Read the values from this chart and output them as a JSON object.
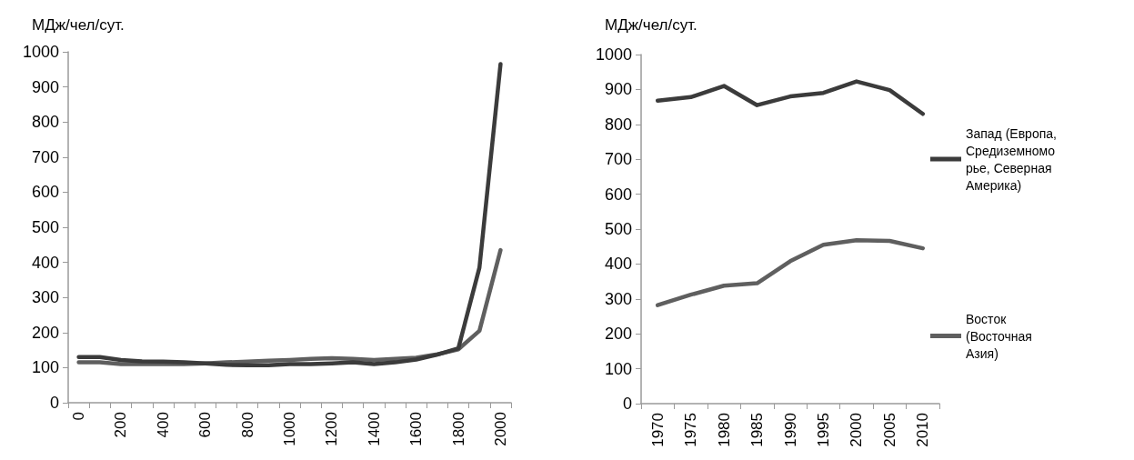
{
  "chart_data": [
    {
      "type": "line",
      "ylabel": "МДж/чел/сут.",
      "categories": [
        "0",
        null,
        "200",
        null,
        "400",
        null,
        "600",
        null,
        "800",
        null,
        "1000",
        null,
        "1200",
        null,
        "1400",
        null,
        "1600",
        null,
        "1800",
        null,
        "2000"
      ],
      "series": [
        {
          "color": "#3b3b3b",
          "values": [
            130,
            130,
            122,
            118,
            117,
            115,
            112,
            108,
            107,
            107,
            110,
            110,
            112,
            115,
            110,
            115,
            123,
            137,
            155,
            385,
            965
          ]
        },
        {
          "color": "#5f5f5f",
          "values": [
            115,
            115,
            110,
            110,
            110,
            110,
            112,
            115,
            117,
            120,
            122,
            125,
            127,
            125,
            122,
            125,
            128,
            138,
            152,
            205,
            435
          ]
        }
      ],
      "ylim": [
        0,
        1000
      ],
      "yticks": [
        0,
        100,
        200,
        300,
        400,
        500,
        600,
        700,
        800,
        900,
        1000
      ],
      "grid": false,
      "legend": false,
      "marker": "none",
      "line_style": "solid"
    },
    {
      "type": "line",
      "ylabel": "МДж/чел/сут.",
      "categories": [
        "1970",
        "1975",
        "1980",
        "1985",
        "1990",
        "1995",
        "2000",
        "2005",
        "2010"
      ],
      "series": [
        {
          "name": "Запад (Европа, Средиземноморье, Северная Америка)",
          "color": "#3b3b3b",
          "values": [
            868,
            878,
            910,
            855,
            880,
            890,
            923,
            898,
            830
          ]
        },
        {
          "name": "Восток (Восточная Азия)",
          "color": "#5f5f5f",
          "values": [
            282,
            312,
            338,
            345,
            408,
            455,
            468,
            466,
            445
          ]
        }
      ],
      "ylim": [
        0,
        1000
      ],
      "yticks": [
        0,
        100,
        200,
        300,
        400,
        500,
        600,
        700,
        800,
        900,
        1000
      ],
      "grid": false,
      "legend": "right",
      "marker": "none",
      "line_style": "solid"
    }
  ]
}
